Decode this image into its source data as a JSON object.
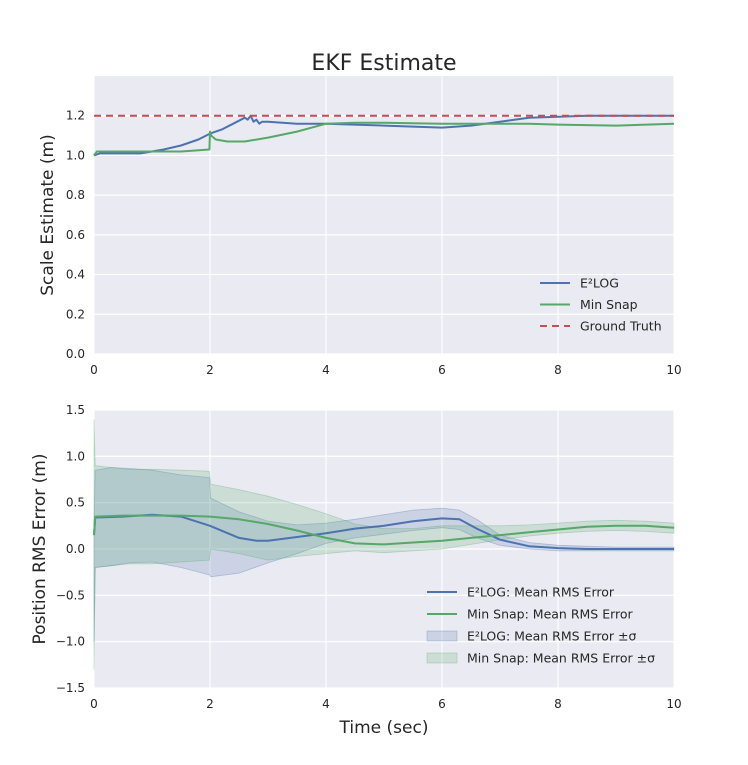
{
  "chart_data": [
    {
      "type": "line",
      "title": "EKF Estimate",
      "xlabel": "",
      "ylabel": "Scale Estimate (m)",
      "xlim": [
        0,
        10
      ],
      "ylim": [
        0,
        1.4
      ],
      "xticks": [
        "0",
        "2",
        "4",
        "6",
        "8",
        "10"
      ],
      "yticks": [
        "0.0",
        "0.2",
        "0.4",
        "0.6",
        "0.8",
        "1.0",
        "1.2"
      ],
      "grid": true,
      "legend_position": "lower-right",
      "series": [
        {
          "name": "E²LOG",
          "color": "#4c72b0",
          "style": "solid",
          "x": [
            0,
            0.1,
            0.5,
            0.8,
            1.0,
            1.2,
            1.5,
            1.8,
            2.0,
            2.2,
            2.4,
            2.6,
            2.65,
            2.7,
            2.75,
            2.8,
            2.85,
            2.9,
            3.0,
            3.5,
            4.0,
            5.0,
            5.5,
            6.0,
            6.5,
            7.0,
            7.5,
            8.0,
            8.5,
            9.0,
            10.0
          ],
          "y": [
            1.0,
            1.01,
            1.01,
            1.01,
            1.02,
            1.03,
            1.05,
            1.08,
            1.11,
            1.13,
            1.16,
            1.19,
            1.18,
            1.2,
            1.17,
            1.18,
            1.16,
            1.17,
            1.17,
            1.16,
            1.16,
            1.15,
            1.145,
            1.14,
            1.15,
            1.17,
            1.19,
            1.195,
            1.2,
            1.2,
            1.2
          ]
        },
        {
          "name": "Min Snap",
          "color": "#55a868",
          "style": "solid",
          "x": [
            0,
            0.05,
            0.5,
            1.0,
            1.5,
            1.99,
            2.0,
            2.02,
            2.1,
            2.3,
            2.6,
            3.0,
            3.5,
            4.0,
            4.5,
            5.0,
            6.0,
            7.0,
            7.5,
            8.0,
            9.0,
            10.0
          ],
          "y": [
            1.0,
            1.02,
            1.02,
            1.02,
            1.02,
            1.03,
            1.12,
            1.1,
            1.08,
            1.07,
            1.07,
            1.09,
            1.12,
            1.16,
            1.165,
            1.165,
            1.16,
            1.16,
            1.16,
            1.155,
            1.15,
            1.16
          ]
        },
        {
          "name": "Ground Truth",
          "color": "#c44e52",
          "style": "dashed",
          "x": [
            0,
            10
          ],
          "y": [
            1.2,
            1.2
          ]
        }
      ]
    },
    {
      "type": "line",
      "title": "",
      "xlabel": "Time (sec)",
      "ylabel": "Position RMS Error (m)",
      "xlim": [
        0,
        10
      ],
      "ylim": [
        -1.5,
        1.5
      ],
      "xticks": [
        "0",
        "2",
        "4",
        "6",
        "8",
        "10"
      ],
      "yticks": [
        "−1.5",
        "−1.0",
        "−0.5",
        "0.0",
        "0.5",
        "1.0",
        "1.5"
      ],
      "grid": true,
      "legend_position": "lower-right",
      "series": [
        {
          "name": "E²LOG: Mean RMS Error",
          "color": "#4c72b0",
          "style": "solid",
          "x": [
            0,
            0.02,
            0.5,
            1.0,
            1.5,
            2.0,
            2.5,
            2.8,
            3.0,
            3.5,
            4.0,
            4.5,
            5.0,
            5.5,
            6.0,
            6.3,
            6.6,
            7.0,
            7.5,
            8.0,
            8.5,
            9.0,
            9.5,
            10.0
          ],
          "y": [
            0.15,
            0.34,
            0.35,
            0.37,
            0.35,
            0.25,
            0.12,
            0.09,
            0.09,
            0.13,
            0.17,
            0.22,
            0.25,
            0.3,
            0.33,
            0.32,
            0.22,
            0.1,
            0.03,
            0.01,
            0.0,
            0.0,
            0.0,
            0.0
          ]
        },
        {
          "name": "Min Snap: Mean RMS Error",
          "color": "#55a868",
          "style": "solid",
          "x": [
            0,
            0.02,
            0.5,
            1.0,
            1.5,
            2.0,
            2.5,
            3.0,
            3.5,
            4.0,
            4.5,
            5.0,
            5.5,
            6.0,
            6.5,
            7.0,
            7.5,
            8.0,
            8.5,
            9.0,
            9.5,
            10.0
          ],
          "y": [
            0.15,
            0.35,
            0.36,
            0.36,
            0.36,
            0.35,
            0.32,
            0.27,
            0.2,
            0.12,
            0.06,
            0.05,
            0.07,
            0.09,
            0.12,
            0.15,
            0.18,
            0.21,
            0.24,
            0.25,
            0.25,
            0.23
          ]
        }
      ],
      "bands": [
        {
          "name": "E²LOG: Mean RMS Error ±σ",
          "color": "#4c72b0",
          "opacity": 0.2,
          "x": [
            0,
            0.02,
            0.3,
            0.6,
            1.0,
            1.5,
            1.99,
            2.01,
            2.5,
            3.0,
            3.5,
            4.0,
            4.5,
            5.0,
            5.5,
            6.0,
            6.3,
            6.6,
            7.0,
            7.5,
            8.0,
            9.0,
            10.0
          ],
          "upper": [
            0.3,
            0.85,
            0.88,
            0.87,
            0.85,
            0.8,
            0.77,
            0.55,
            0.4,
            0.3,
            0.26,
            0.28,
            0.32,
            0.37,
            0.42,
            0.44,
            0.42,
            0.32,
            0.15,
            0.07,
            0.04,
            0.02,
            0.02
          ],
          "lower": [
            -1.0,
            -0.2,
            -0.18,
            -0.15,
            -0.14,
            -0.2,
            -0.28,
            -0.3,
            -0.26,
            -0.15,
            -0.05,
            0.06,
            0.12,
            0.16,
            0.2,
            0.23,
            0.21,
            0.12,
            0.04,
            0.0,
            -0.02,
            -0.02,
            -0.02
          ]
        },
        {
          "name": "Min Snap: Mean RMS Error ±σ",
          "color": "#55a868",
          "opacity": 0.2,
          "x": [
            0,
            0.02,
            0.3,
            0.6,
            1.0,
            1.5,
            1.99,
            2.01,
            2.5,
            3.0,
            3.5,
            4.0,
            4.5,
            5.0,
            5.5,
            6.0,
            6.5,
            7.0,
            7.5,
            8.0,
            8.5,
            9.0,
            9.5,
            10.0
          ],
          "upper": [
            1.4,
            0.9,
            0.88,
            0.86,
            0.86,
            0.85,
            0.84,
            0.7,
            0.64,
            0.57,
            0.48,
            0.38,
            0.27,
            0.22,
            0.22,
            0.25,
            0.25,
            0.25,
            0.26,
            0.28,
            0.3,
            0.31,
            0.3,
            0.28
          ],
          "lower": [
            -1.3,
            -0.2,
            -0.18,
            -0.16,
            -0.16,
            -0.14,
            -0.12,
            0.0,
            -0.05,
            -0.12,
            -0.08,
            -0.05,
            -0.02,
            -0.04,
            -0.02,
            0.0,
            0.05,
            0.1,
            0.14,
            0.17,
            0.19,
            0.2,
            0.19,
            0.17
          ]
        }
      ]
    }
  ]
}
